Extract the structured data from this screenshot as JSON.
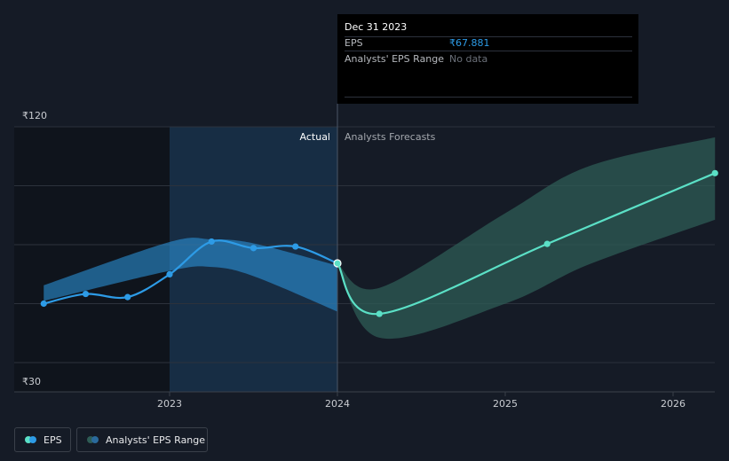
{
  "chart_data": {
    "type": "line",
    "currency_symbol": "₹",
    "y_tick_labels": [
      "₹120",
      "₹30"
    ],
    "ylim": [
      30,
      120
    ],
    "x_ticks": [
      "2023",
      "2024",
      "2025",
      "2026"
    ],
    "divider_labels": {
      "actual": "Actual",
      "forecast": "Analysts Forecasts"
    },
    "series": [
      {
        "name": "EPS",
        "kind": "actual",
        "color": "#2d9be6",
        "points": [
          {
            "x": 2022.25,
            "y": 52.5
          },
          {
            "x": 2022.5,
            "y": 56.2
          },
          {
            "x": 2022.75,
            "y": 55.0
          },
          {
            "x": 2023.0,
            "y": 63.7
          },
          {
            "x": 2023.25,
            "y": 76.2
          },
          {
            "x": 2023.5,
            "y": 73.7
          },
          {
            "x": 2023.75,
            "y": 74.3
          },
          {
            "x": 2024.0,
            "y": 67.9
          }
        ]
      },
      {
        "name": "EPS",
        "kind": "forecast",
        "color": "#5be0c6",
        "points": [
          {
            "x": 2024.0,
            "y": 67.9
          },
          {
            "x": 2024.25,
            "y": 48.6
          },
          {
            "x": 2025.25,
            "y": 75.3
          },
          {
            "x": 2026.25,
            "y": 102.3
          }
        ]
      }
    ],
    "ranges": [
      {
        "name": "Analysts' EPS Range",
        "kind": "actual",
        "color": "#2d9be6",
        "upper": [
          [
            2022.25,
            59.5
          ],
          [
            2023.0,
            76.0
          ],
          [
            2023.25,
            77.0
          ],
          [
            2023.5,
            75.5
          ],
          [
            2024.0,
            67.0
          ]
        ],
        "lower": [
          [
            2022.25,
            53.5
          ],
          [
            2023.0,
            65.0
          ],
          [
            2023.25,
            66.5
          ],
          [
            2023.5,
            63.0
          ],
          [
            2024.0,
            49.5
          ]
        ]
      },
      {
        "name": "Analysts' EPS Range",
        "kind": "forecast",
        "color": "#2e5c55",
        "upper": [
          [
            2024.0,
            67.9
          ],
          [
            2024.25,
            58.5
          ],
          [
            2025.0,
            87.0
          ],
          [
            2025.5,
            105.0
          ],
          [
            2026.25,
            116.0
          ]
        ],
        "lower": [
          [
            2024.0,
            67.9
          ],
          [
            2024.25,
            39.5
          ],
          [
            2025.0,
            52.5
          ],
          [
            2025.5,
            67.5
          ],
          [
            2026.25,
            84.5
          ]
        ]
      }
    ],
    "grid": true
  },
  "tooltip": {
    "date": "Dec 31 2023",
    "eps_label": "EPS",
    "eps_value": "₹67.881",
    "range_label": "Analysts' EPS Range",
    "range_value": "No data"
  },
  "legend": {
    "eps_label": "EPS",
    "range_label": "Analysts' EPS Range"
  },
  "colors": {
    "background": "#151b26",
    "past_shade": "#0f141c",
    "highlight": "#17304a",
    "actual": "#2d9be6",
    "forecast": "#5be0c6",
    "forecast_band": "#2e5c55",
    "grid": "#2c323c"
  }
}
